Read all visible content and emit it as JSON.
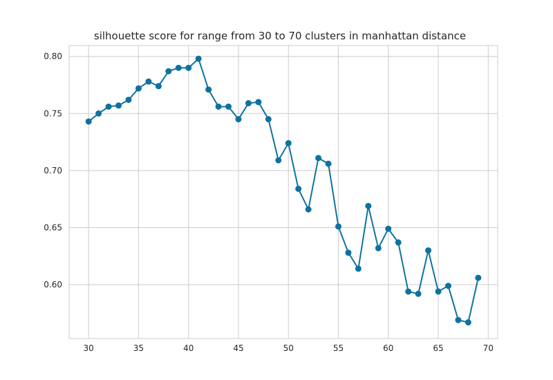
{
  "chart_data": {
    "type": "line",
    "title": "silhouette score for range from 30 to 70 clusters in manhattan distance",
    "xlabel": "",
    "ylabel": "",
    "x": [
      30,
      31,
      32,
      33,
      34,
      35,
      36,
      37,
      38,
      39,
      40,
      41,
      42,
      43,
      44,
      45,
      46,
      47,
      48,
      49,
      50,
      51,
      52,
      53,
      54,
      55,
      56,
      57,
      58,
      59,
      60,
      61,
      62,
      63,
      64,
      65,
      66,
      67,
      68,
      69
    ],
    "series": [
      {
        "values": [
          0.743,
          0.75,
          0.756,
          0.757,
          0.762,
          0.772,
          0.778,
          0.774,
          0.787,
          0.79,
          0.79,
          0.798,
          0.771,
          0.756,
          0.756,
          0.745,
          0.759,
          0.76,
          0.745,
          0.709,
          0.724,
          0.684,
          0.666,
          0.711,
          0.706,
          0.651,
          0.628,
          0.614,
          0.669,
          0.632,
          0.649,
          0.637,
          0.594,
          0.592,
          0.63,
          0.594,
          0.599,
          0.569,
          0.567,
          0.606
        ],
        "color": "#0e72a0"
      }
    ],
    "xlim": [
      28.05,
      70.95
    ],
    "ylim": [
      0.5528,
      0.8095
    ],
    "xticks": [
      30,
      35,
      40,
      45,
      50,
      55,
      60,
      65,
      70
    ],
    "yticks": [
      0.6,
      0.65,
      0.7,
      0.75,
      0.8
    ],
    "grid": true,
    "legend": "none"
  }
}
